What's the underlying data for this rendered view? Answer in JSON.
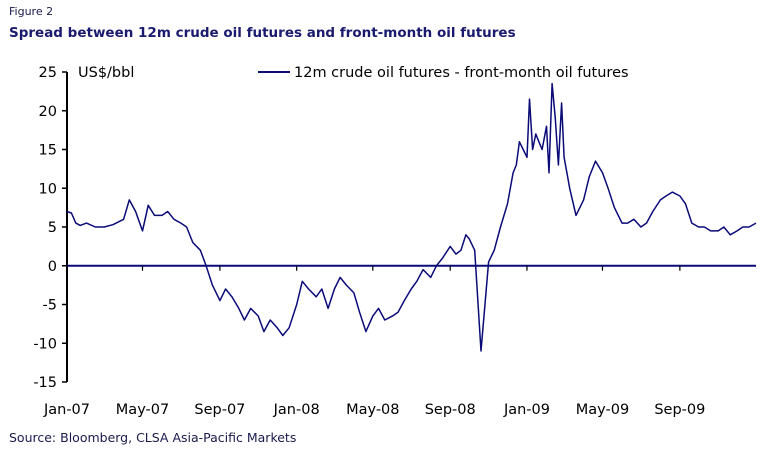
{
  "figure_label": "Figure 2",
  "source": "Source: Bloomberg, CLSA Asia-Pacific Markets",
  "colors": {
    "series": "#0a0a78",
    "axis": "#000000",
    "title": "#1a1a6e"
  },
  "chart_data": {
    "type": "line",
    "title": "Spread between 12m crude oil futures and front-month oil futures",
    "ylabel": "US$/bbl",
    "xlabel": "",
    "ylim": [
      -15,
      25
    ],
    "yticks": [
      -15,
      -10,
      -5,
      0,
      5,
      10,
      15,
      20,
      25
    ],
    "xlim": [
      "2007-01-01",
      "2009-12-31"
    ],
    "xticks": [
      {
        "date": "2007-01-01",
        "label": "Jan-07"
      },
      {
        "date": "2007-05-01",
        "label": "May-07"
      },
      {
        "date": "2007-09-01",
        "label": "Sep-07"
      },
      {
        "date": "2008-01-01",
        "label": "Jan-08"
      },
      {
        "date": "2008-05-01",
        "label": "May-08"
      },
      {
        "date": "2008-09-01",
        "label": "Sep-08"
      },
      {
        "date": "2009-01-01",
        "label": "Jan-09"
      },
      {
        "date": "2009-05-01",
        "label": "May-09"
      },
      {
        "date": "2009-09-01",
        "label": "Sep-09"
      }
    ],
    "grid": false,
    "legend_position": "top",
    "series": [
      {
        "name": "12m crude oil futures - front-month oil futures",
        "x": [
          "2007-01-01",
          "2007-01-08",
          "2007-01-15",
          "2007-01-22",
          "2007-02-01",
          "2007-02-15",
          "2007-03-01",
          "2007-03-15",
          "2007-04-01",
          "2007-04-10",
          "2007-04-20",
          "2007-05-01",
          "2007-05-10",
          "2007-05-20",
          "2007-06-01",
          "2007-06-10",
          "2007-06-20",
          "2007-07-01",
          "2007-07-10",
          "2007-07-20",
          "2007-08-01",
          "2007-08-10",
          "2007-08-20",
          "2007-09-01",
          "2007-09-10",
          "2007-09-20",
          "2007-10-01",
          "2007-10-10",
          "2007-10-20",
          "2007-11-01",
          "2007-11-10",
          "2007-11-20",
          "2007-12-01",
          "2007-12-10",
          "2007-12-20",
          "2008-01-01",
          "2008-01-10",
          "2008-01-20",
          "2008-02-01",
          "2008-02-10",
          "2008-02-20",
          "2008-03-01",
          "2008-03-10",
          "2008-03-20",
          "2008-04-01",
          "2008-04-10",
          "2008-04-20",
          "2008-05-01",
          "2008-05-10",
          "2008-05-20",
          "2008-06-01",
          "2008-06-10",
          "2008-06-20",
          "2008-07-01",
          "2008-07-10",
          "2008-07-20",
          "2008-08-01",
          "2008-08-10",
          "2008-08-20",
          "2008-09-01",
          "2008-09-10",
          "2008-09-18",
          "2008-09-22",
          "2008-09-26",
          "2008-10-01",
          "2008-10-10",
          "2008-10-20",
          "2008-11-01",
          "2008-11-10",
          "2008-11-20",
          "2008-12-01",
          "2008-12-10",
          "2008-12-15",
          "2008-12-20",
          "2008-12-26",
          "2009-01-01",
          "2009-01-05",
          "2009-01-10",
          "2009-01-15",
          "2009-01-20",
          "2009-01-25",
          "2009-02-01",
          "2009-02-05",
          "2009-02-10",
          "2009-02-15",
          "2009-02-20",
          "2009-02-25",
          "2009-03-01",
          "2009-03-10",
          "2009-03-20",
          "2009-04-01",
          "2009-04-10",
          "2009-04-20",
          "2009-05-01",
          "2009-05-10",
          "2009-05-20",
          "2009-06-01",
          "2009-06-10",
          "2009-06-20",
          "2009-07-01",
          "2009-07-10",
          "2009-07-20",
          "2009-08-01",
          "2009-08-10",
          "2009-08-20",
          "2009-09-01",
          "2009-09-10",
          "2009-09-20",
          "2009-10-01",
          "2009-10-10",
          "2009-10-20",
          "2009-11-01",
          "2009-11-10",
          "2009-11-20",
          "2009-12-01",
          "2009-12-10",
          "2009-12-20",
          "2009-12-31"
        ],
        "values": [
          7.0,
          6.8,
          5.5,
          5.2,
          5.5,
          5.0,
          5.0,
          5.3,
          6.0,
          8.5,
          7.0,
          4.5,
          7.8,
          6.5,
          6.5,
          7.0,
          6.0,
          5.5,
          5.0,
          3.0,
          2.0,
          0.0,
          -2.5,
          -4.5,
          -3.0,
          -4.0,
          -5.5,
          -7.0,
          -5.5,
          -6.5,
          -8.5,
          -7.0,
          -8.0,
          -9.0,
          -8.0,
          -5.0,
          -2.0,
          -3.0,
          -4.0,
          -3.0,
          -5.5,
          -3.0,
          -1.5,
          -2.5,
          -3.5,
          -6.0,
          -8.5,
          -6.5,
          -5.5,
          -7.0,
          -6.5,
          -6.0,
          -4.5,
          -3.0,
          -2.0,
          -0.5,
          -1.5,
          0.0,
          1.0,
          2.5,
          1.5,
          2.0,
          3.0,
          4.0,
          3.5,
          2.0,
          -11.0,
          0.5,
          2.0,
          5.0,
          8.0,
          12.0,
          13.0,
          16.0,
          15.0,
          14.0,
          21.5,
          15.0,
          17.0,
          16.0,
          15.0,
          18.0,
          12.0,
          23.5,
          19.0,
          13.0,
          21.0,
          14.0,
          10.0,
          6.5,
          8.5,
          11.5,
          13.5,
          12.0,
          10.0,
          7.5,
          5.5,
          5.5,
          6.0,
          5.0,
          5.5,
          7.0,
          8.5,
          9.0,
          9.5,
          9.0,
          8.0,
          5.5,
          5.0,
          5.0,
          4.5,
          4.5,
          5.0,
          4.0,
          4.5,
          5.0,
          5.0,
          5.5
        ]
      }
    ]
  }
}
